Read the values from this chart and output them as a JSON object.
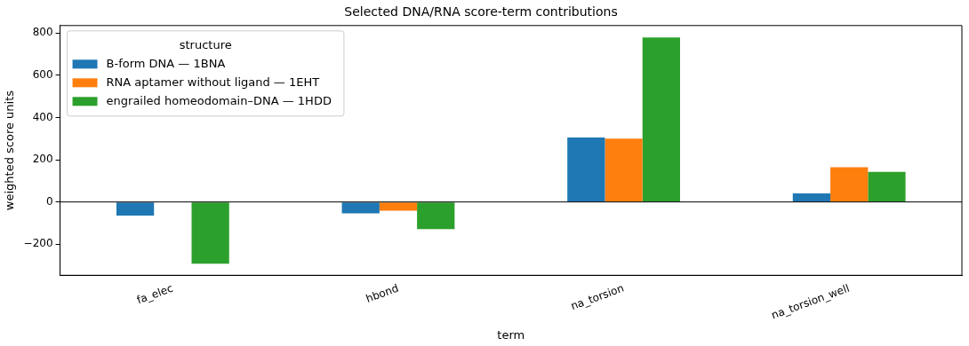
{
  "chart_data": {
    "type": "bar",
    "title": "Selected DNA/RNA score-term contributions",
    "xlabel": "term",
    "ylabel": "weighted score units",
    "legend_title": "structure",
    "categories": [
      "fa_elec",
      "hbond",
      "na_torsion",
      "na_torsion_well"
    ],
    "series": [
      {
        "name": "B-form DNA — 1BNA",
        "color": "#1f77b4",
        "values": [
          -64,
          -54,
          305,
          41
        ]
      },
      {
        "name": "RNA aptamer without ligand — 1EHT",
        "color": "#ff7f0e",
        "values": [
          0,
          -41,
          300,
          164
        ]
      },
      {
        "name": "engrailed homeodomain–DNA — 1HDD",
        "color": "#2ca02c",
        "values": [
          -292,
          -129,
          779,
          142
        ]
      }
    ],
    "ylim": [
      -347,
      835
    ],
    "yticks": [
      -200,
      0,
      200,
      400,
      600,
      800
    ],
    "ref_lines": [
      {
        "axis": "y",
        "value": 0,
        "color": "#000000"
      }
    ],
    "grid": false,
    "legend": "top left"
  }
}
